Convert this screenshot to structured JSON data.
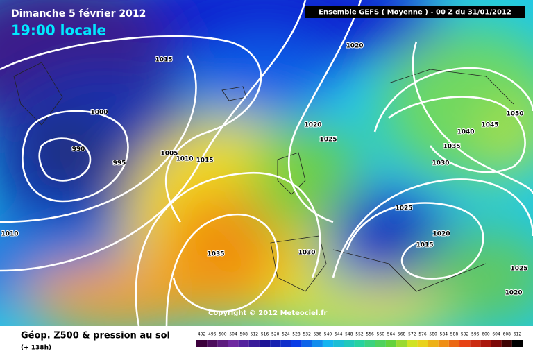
{
  "header": {
    "date": "Dimanche 5 février 2012",
    "time": "19:00 locale",
    "model": "Ensemble GEFS ( Moyenne )  -  00 Z du 31/01/2012"
  },
  "isobar_labels": [
    "1015",
    "1000",
    "990",
    "995",
    "1005",
    "1010",
    "1015",
    "1010",
    "1035",
    "1030",
    "1020",
    "1020",
    "1025",
    "1030",
    "1035",
    "1040",
    "1045",
    "1050",
    "1025",
    "1020",
    "1015",
    "1025",
    "1020"
  ],
  "legend": {
    "values": [
      492,
      496,
      500,
      504,
      508,
      512,
      516,
      520,
      524,
      528,
      532,
      536,
      540,
      544,
      548,
      552,
      556,
      560,
      564,
      568,
      572,
      576,
      580,
      584,
      588,
      592,
      596,
      600,
      604,
      608,
      612
    ]
  },
  "footer": {
    "title": "Géop. Z500 & pression au sol",
    "lead": "(+ 138h)",
    "copyright": "Copyright © 2012 Meteociel.fr"
  }
}
